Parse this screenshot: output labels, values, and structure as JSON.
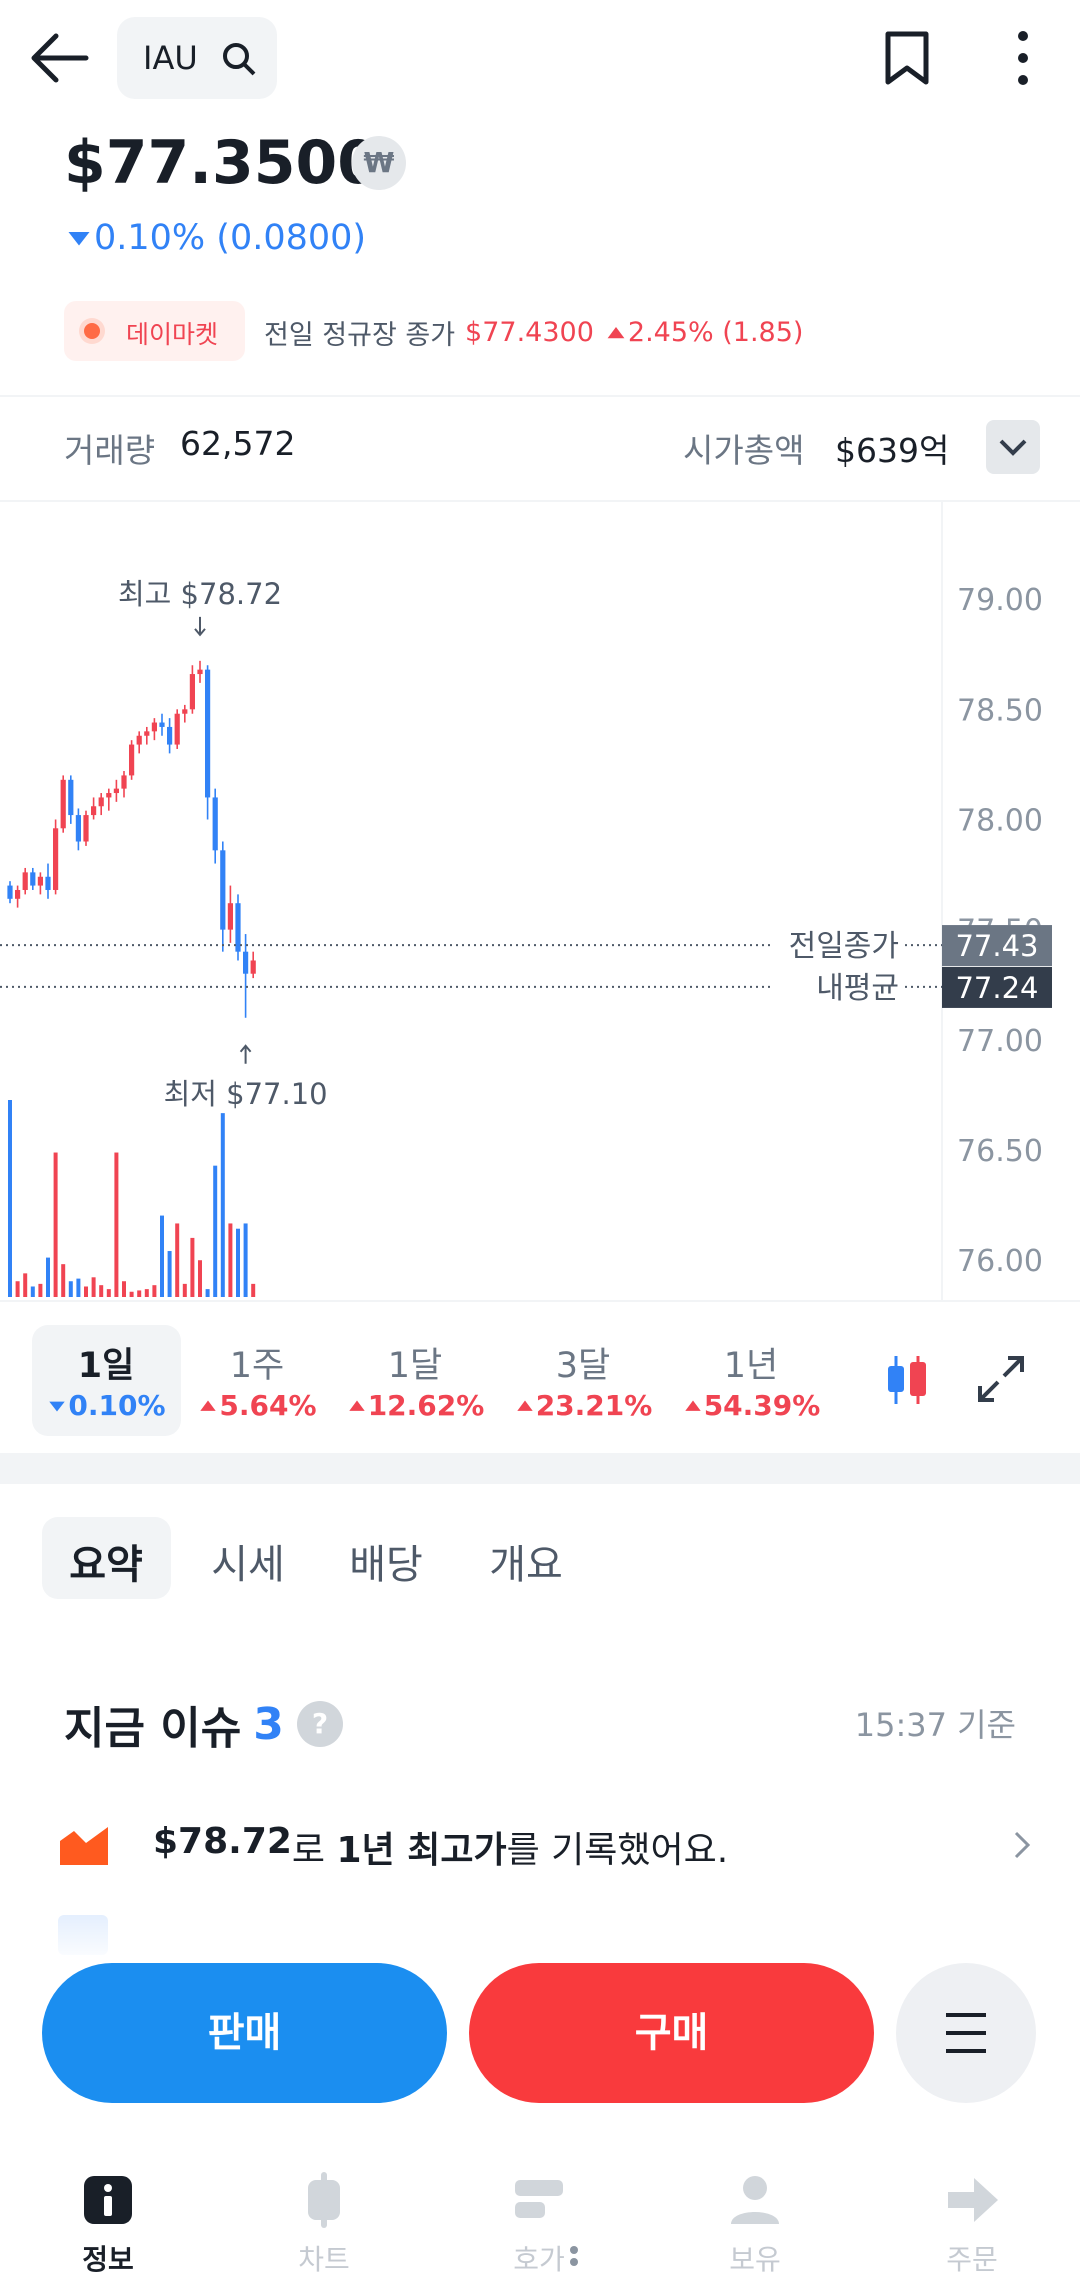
{
  "top_bar": {
    "search": "IAU"
  },
  "quote": {
    "price": "$77.3500",
    "currency_badge": "₩",
    "change": "0.10% (0.0800)",
    "change_dir": "down",
    "day_market": {
      "badge": "데이마켓",
      "label": "전일 정규장 종가",
      "price": "$77.4300",
      "change": "2.45% (1.85)",
      "change_dir": "up"
    }
  },
  "stats": [
    {
      "label": "거래량",
      "value": "62,572"
    },
    {
      "label": "시가총액",
      "value": "$639억"
    }
  ],
  "chart_data": {
    "type": "candlestick",
    "ylim": [
      75.81,
      79.45
    ],
    "yticks": [
      {
        "value": 76,
        "label": "76.00"
      },
      {
        "value": 76.5,
        "label": "76.50"
      },
      {
        "value": 77,
        "label": "77.00"
      },
      {
        "value": 77.5,
        "label": "77.50"
      },
      {
        "value": 78,
        "label": "78.00"
      },
      {
        "value": 78.5,
        "label": "78.50"
      },
      {
        "value": 79,
        "label": "79.00"
      }
    ],
    "colors": {
      "up": "#f04452",
      "down": "#3182f6"
    },
    "open": [
      77.7,
      77.64,
      77.68,
      77.76,
      77.7,
      77.74,
      77.68,
      77.96,
      78.18,
      78.02,
      77.9,
      78.02,
      78.06,
      78.1,
      78.12,
      78.14,
      78.2,
      78.34,
      78.38,
      78.4,
      78.44,
      78.42,
      78.34,
      78.48,
      78.5,
      78.66,
      78.68,
      78.1,
      77.86,
      77.5,
      77.62,
      77.4,
      77.3
    ],
    "high": [
      77.72,
      77.7,
      77.78,
      77.78,
      77.76,
      77.8,
      78.0,
      78.2,
      78.2,
      78.05,
      78.04,
      78.1,
      78.12,
      78.14,
      78.18,
      78.22,
      78.36,
      78.4,
      78.42,
      78.46,
      78.48,
      78.46,
      78.5,
      78.52,
      78.7,
      78.72,
      78.7,
      78.14,
      77.9,
      77.7,
      77.66,
      77.48,
      77.4
    ],
    "low": [
      77.62,
      77.6,
      77.66,
      77.68,
      77.66,
      77.64,
      77.66,
      77.94,
      77.98,
      77.86,
      77.88,
      78.0,
      78.02,
      78.04,
      78.08,
      78.1,
      78.18,
      78.3,
      78.34,
      78.36,
      78.38,
      78.3,
      78.32,
      78.44,
      78.48,
      78.62,
      78.0,
      77.8,
      77.4,
      77.44,
      77.36,
      77.1,
      77.28
    ],
    "close": [
      77.64,
      77.68,
      77.76,
      77.7,
      77.74,
      77.68,
      77.96,
      78.18,
      78.02,
      77.9,
      78.02,
      78.06,
      78.1,
      78.12,
      78.14,
      78.2,
      78.34,
      78.38,
      78.4,
      78.44,
      78.42,
      78.34,
      78.48,
      78.5,
      78.66,
      78.68,
      78.1,
      77.86,
      77.5,
      77.62,
      77.4,
      77.3,
      77.36
    ],
    "volume": [
      1500,
      120,
      180,
      80,
      100,
      300,
      1100,
      250,
      120,
      140,
      80,
      150,
      90,
      60,
      1100,
      120,
      40,
      50,
      60,
      90,
      620,
      350,
      560,
      100,
      450,
      280,
      60,
      1000,
      1400,
      560,
      520,
      560,
      100
    ],
    "annotations": [
      {
        "text": "최고 $78.72",
        "value": 78.72,
        "index": 25,
        "side": "above"
      },
      {
        "text": "최저 $77.10",
        "value": 77.1,
        "index": 31,
        "side": "below"
      }
    ],
    "reference_lines": [
      {
        "name": "전일종가",
        "value": 77.43,
        "color": "#6b7684"
      },
      {
        "name": "내평균",
        "value": 77.24,
        "color": "#333d4b"
      }
    ]
  },
  "periods": [
    {
      "label": "1일",
      "change": "0.10%",
      "dir": "down",
      "selected": true
    },
    {
      "label": "1주",
      "change": "5.64%",
      "dir": "up",
      "selected": false
    },
    {
      "label": "1달",
      "change": "12.62%",
      "dir": "up",
      "selected": false
    },
    {
      "label": "3달",
      "change": "23.21%",
      "dir": "up",
      "selected": false
    },
    {
      "label": "1년",
      "change": "54.39%",
      "dir": "up",
      "selected": false
    }
  ],
  "tabs": [
    "요약",
    "시세",
    "배당",
    "개요"
  ],
  "issues": {
    "title": "지금 이슈",
    "count": "3",
    "time": "15:37 기준",
    "items": [
      {
        "segments": [
          {
            "text": "$78.72",
            "bold": true
          },
          {
            "text": "로 ",
            "bold": false
          },
          {
            "text": "1년 최고가",
            "bold": true
          },
          {
            "text": "를 기록했어요.",
            "bold": false
          }
        ]
      }
    ]
  },
  "buttons": {
    "sell": "판매",
    "buy": "구매"
  },
  "nav": [
    "정보",
    "차트",
    "호가",
    "보유",
    "주문"
  ]
}
